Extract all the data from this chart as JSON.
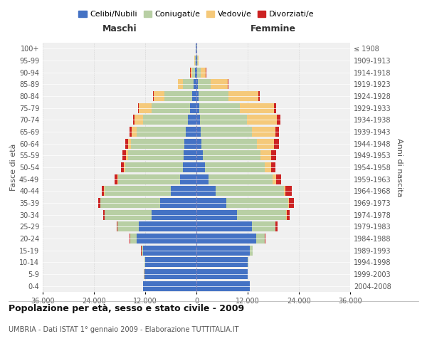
{
  "age_groups": [
    "0-4",
    "5-9",
    "10-14",
    "15-19",
    "20-24",
    "25-29",
    "30-34",
    "35-39",
    "40-44",
    "45-49",
    "50-54",
    "55-59",
    "60-64",
    "65-69",
    "70-74",
    "75-79",
    "80-84",
    "85-89",
    "90-94",
    "95-99",
    "100+"
  ],
  "birth_years": [
    "2004-2008",
    "1999-2003",
    "1994-1998",
    "1989-1993",
    "1984-1988",
    "1979-1983",
    "1974-1978",
    "1969-1973",
    "1964-1968",
    "1959-1963",
    "1954-1958",
    "1949-1953",
    "1944-1948",
    "1939-1943",
    "1934-1938",
    "1929-1933",
    "1924-1928",
    "1919-1923",
    "1914-1918",
    "1909-1913",
    "≤ 1908"
  ],
  "colors": {
    "celibi": "#4472C4",
    "coniugati": "#b8cfa4",
    "vedovi": "#f5c97a",
    "divorziati": "#cc2222"
  },
  "male": {
    "celibi": [
      12500,
      12200,
      12000,
      12500,
      14000,
      13500,
      10500,
      8500,
      6000,
      3800,
      3200,
      3000,
      2800,
      2500,
      2000,
      1500,
      1000,
      600,
      400,
      200,
      100
    ],
    "coniugati": [
      20,
      50,
      100,
      400,
      1500,
      5000,
      11000,
      14000,
      15500,
      14500,
      13500,
      13000,
      12500,
      11500,
      10500,
      9000,
      6500,
      2500,
      600,
      200,
      50
    ],
    "vedovi": [
      1,
      1,
      2,
      5,
      10,
      20,
      30,
      50,
      100,
      200,
      300,
      500,
      700,
      1200,
      2000,
      3000,
      2500,
      1200,
      400,
      100,
      20
    ],
    "divorziati": [
      2,
      5,
      10,
      30,
      80,
      150,
      250,
      400,
      500,
      600,
      700,
      800,
      700,
      500,
      350,
      200,
      120,
      80,
      40,
      20,
      5
    ]
  },
  "female": {
    "nubili": [
      12500,
      12000,
      12000,
      12500,
      14000,
      13000,
      9500,
      7000,
      4500,
      2800,
      2000,
      1500,
      1200,
      1000,
      800,
      600,
      500,
      300,
      200,
      150,
      80
    ],
    "coniugate": [
      30,
      60,
      150,
      600,
      2000,
      5500,
      11500,
      14500,
      16000,
      15000,
      14000,
      13500,
      13000,
      12000,
      11000,
      9500,
      7000,
      3000,
      800,
      200,
      50
    ],
    "vedove": [
      1,
      2,
      5,
      10,
      20,
      50,
      100,
      200,
      400,
      800,
      1500,
      2500,
      4000,
      5500,
      7000,
      8000,
      7000,
      4000,
      1200,
      200,
      50
    ],
    "divorziate": [
      2,
      5,
      15,
      50,
      150,
      400,
      800,
      1200,
      1500,
      1200,
      1000,
      1100,
      1100,
      900,
      800,
      600,
      300,
      150,
      60,
      20,
      5
    ]
  },
  "xlim": 36000,
  "title": "Popolazione per età, sesso e stato civile - 2009",
  "subtitle": "UMBRIA - Dati ISTAT 1° gennaio 2009 - Elaborazione TUTTITALIA.IT",
  "xlabel_left": "Maschi",
  "xlabel_right": "Femmine",
  "ylabel": "Fasce di età",
  "ylabel_right": "Anni di nascita",
  "xticks": [
    -36000,
    -24000,
    -12000,
    0,
    12000,
    24000,
    36000
  ],
  "xtick_labels": [
    "36.000",
    "24.000",
    "12.000",
    "0",
    "12.000",
    "24.000",
    "36.000"
  ],
  "legend_labels": [
    "Celibi/Nubili",
    "Coniugati/e",
    "Vedovi/e",
    "Divorziati/e"
  ],
  "bg_color": "#f0f0f0",
  "bar_height": 0.85
}
